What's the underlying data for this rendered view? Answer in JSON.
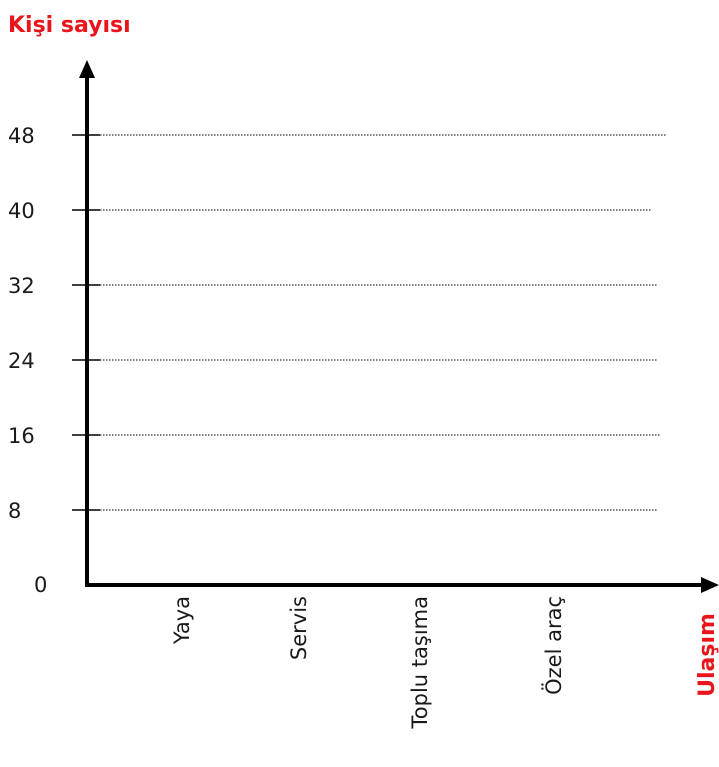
{
  "chart_data": {
    "type": "bar",
    "title": "",
    "ylabel": "Kişi sayısı",
    "xlabel": "Ulaşım",
    "categories": [
      "Yaya",
      "Servis",
      "Toplu taşıma",
      "Özel araç"
    ],
    "yticks": [
      0,
      8,
      16,
      24,
      32,
      40,
      48
    ],
    "ylim": [
      0,
      48
    ],
    "grid": true,
    "series": [],
    "colors": {
      "axis": "#000000",
      "label": "#e8151b",
      "grid": "#333333"
    }
  }
}
